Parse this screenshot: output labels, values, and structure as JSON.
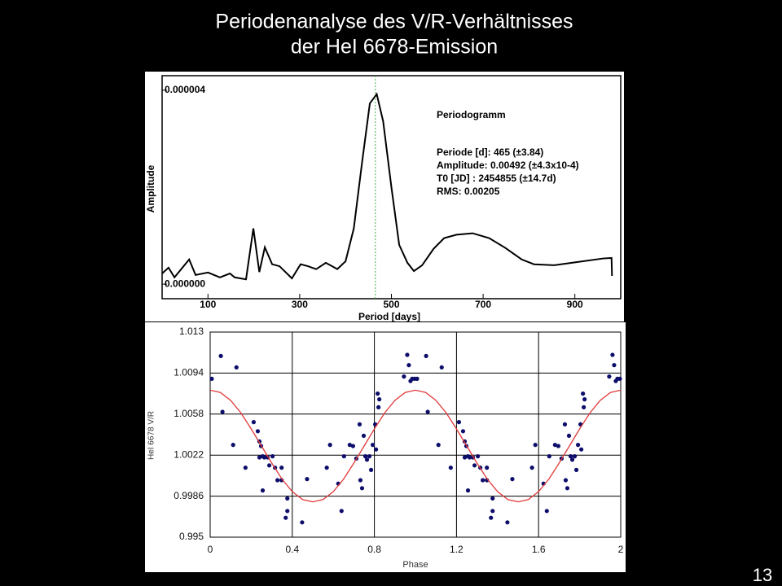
{
  "slide": {
    "title_lines": [
      "Periodenanalyse des V/R-Verhältnisses",
      "der HeI 6678-Emission"
    ],
    "page_number": "13"
  },
  "chart_data": [
    {
      "type": "line",
      "xlabel": "Period [days]",
      "ylabel": "Amplitude",
      "annotations": [
        "Periodogramm",
        "Periode [d]:  465 (±3.84)",
        "Amplitude:  0.00492  (±4.3x10-4)",
        "T0 [JD] : 2454855  (±14.7d)",
        "RMS:  0.00205"
      ],
      "xlim": [
        0,
        1000
      ],
      "xticks": [
        100,
        300,
        500,
        700,
        900
      ],
      "ylim": [
        -3e-07,
        4.3e-06
      ],
      "yticks": [
        {
          "value": 4e-06,
          "label": "0.000004"
        },
        {
          "value": 0,
          "label": "0.000000"
        }
      ],
      "marker_x": 465,
      "marker_color": "#3cb043",
      "series": [
        {
          "color": "#000000",
          "x": [
            0,
            14,
            27,
            59,
            73,
            100,
            126,
            148,
            158,
            183,
            199,
            212,
            224,
            240,
            256,
            283,
            302,
            318,
            336,
            357,
            382,
            400,
            418,
            436,
            453,
            468,
            482,
            500,
            517,
            535,
            549,
            567,
            592,
            615,
            642,
            677,
            713,
            748,
            784,
            811,
            855,
            908,
            962,
            980,
            981
          ],
          "values": [
            2.2e-07,
            3.4e-07,
            1.4e-07,
            5.1e-07,
            1.9e-07,
            2.4e-07,
            1.4e-07,
            2.2e-07,
            1.4e-07,
            1e-07,
            1.15e-06,
            2.5e-07,
            7.6e-07,
            4.1e-07,
            3.7e-07,
            1.2e-07,
            4.1e-07,
            3.7e-07,
            3.1e-07,
            4.4e-07,
            3.1e-07,
            4.7e-07,
            1.15e-06,
            2.51e-06,
            3.73e-06,
            3.92e-06,
            3.36e-06,
            2e-06,
            8.1e-07,
            4.4e-07,
            2.7e-07,
            3.9e-07,
            7.3e-07,
            9.5e-07,
            1.02e-06,
            1.05e-06,
            9.5e-07,
            7.5e-07,
            5.1e-07,
            4.1e-07,
            3.9e-07,
            4.6e-07,
            5.3e-07,
            5.4e-07,
            1.7e-07
          ]
        }
      ]
    },
    {
      "type": "scatter",
      "xlabel": "Phase",
      "ylabel": "HeI 6678 V/R",
      "grid": true,
      "xlim": [
        0,
        2
      ],
      "xticks": [
        0,
        0.4,
        0.8,
        1.2,
        1.6,
        2
      ],
      "ylim": [
        0.995,
        1.013
      ],
      "yticks": [
        1.013,
        1.0094,
        1.0058,
        1.0022,
        0.9986,
        0.995
      ],
      "series": [
        {
          "type": "scatter",
          "color": "#0d0d6b",
          "x": [
            0.008,
            0.052,
            0.06,
            0.128,
            0.112,
            0.172,
            0.212,
            0.232,
            0.24,
            0.248,
            0.256,
            0.24,
            0.264,
            0.28,
            0.288,
            0.304,
            0.316,
            0.328,
            0.348,
            0.256,
            0.368,
            0.376,
            0.376,
            0.348,
            0.448,
            0.472,
            0.568,
            0.584,
            0.624,
            0.64,
            0.652,
            0.68,
            0.696,
            0.712,
            0.728,
            0.732,
            0.74,
            0.748,
            0.756,
            0.764,
            0.776,
            0.784,
            0.792,
            0.804,
            0.808,
            0.816,
            0.82,
            0.824,
            0.944,
            0.96,
            0.968,
            0.976,
            0.984,
            0.996,
            1.008,
            1.052,
            1.06,
            1.128,
            1.112,
            1.172,
            1.212,
            1.232,
            1.24,
            1.248,
            1.256,
            1.24,
            1.264,
            1.28,
            1.288,
            1.304,
            1.316,
            1.328,
            1.348,
            1.256,
            1.368,
            1.376,
            1.376,
            1.348,
            1.448,
            1.472,
            1.568,
            1.584,
            1.624,
            1.64,
            1.652,
            1.68,
            1.696,
            1.712,
            1.728,
            1.732,
            1.74,
            1.748,
            1.756,
            1.764,
            1.776,
            1.784,
            1.792,
            1.804,
            1.808,
            1.816,
            1.82,
            1.824,
            1.944,
            1.96,
            1.968,
            1.976,
            1.984,
            1.996
          ],
          "values": [
            1.0089,
            1.0109,
            1.006,
            1.0099,
            1.0031,
            1.0011,
            1.0051,
            1.0043,
            1.0034,
            1.003,
            1.0021,
            1.002,
            1.002,
            1.002,
            1.0013,
            1.0021,
            1.0011,
            1.0,
            1.0011,
            0.9991,
            0.9967,
            0.9973,
            0.9984,
            1.0,
            0.9963,
            1.0001,
            1.0011,
            1.0031,
            0.9997,
            0.9973,
            1.0021,
            1.0031,
            1.003,
            1.0019,
            1.0049,
            1.0,
            0.9993,
            1.0039,
            1.0021,
            1.0018,
            1.0021,
            1.0009,
            1.0031,
            1.0049,
            1.0027,
            1.0076,
            1.0064,
            1.0071,
            1.0091,
            1.011,
            1.0101,
            1.0087,
            1.0089,
            1.0089,
            1.0089,
            1.0109,
            1.006,
            1.0099,
            1.0031,
            1.0011,
            1.0051,
            1.0043,
            1.0034,
            1.003,
            1.0021,
            1.002,
            1.002,
            1.002,
            1.0013,
            1.0021,
            1.0011,
            1.0,
            1.0011,
            0.9991,
            0.9967,
            0.9973,
            0.9984,
            1.0,
            0.9963,
            1.0001,
            1.0011,
            1.0031,
            0.9997,
            0.9973,
            1.0021,
            1.0031,
            1.003,
            1.0019,
            1.0049,
            1.0,
            0.9993,
            1.0039,
            1.0021,
            1.0018,
            1.0021,
            1.0009,
            1.0031,
            1.0049,
            1.0027,
            1.0076,
            1.0064,
            1.0071,
            1.0091,
            1.011,
            1.0101,
            1.0087,
            1.0089,
            1.0089
          ]
        },
        {
          "type": "line",
          "color": "#e03a3a",
          "x": [
            0,
            0.05,
            0.1,
            0.15,
            0.2,
            0.25,
            0.3,
            0.35,
            0.4,
            0.45,
            0.5,
            0.55,
            0.6,
            0.65,
            0.7,
            0.75,
            0.8,
            0.85,
            0.9,
            0.95,
            1,
            1.05,
            1.1,
            1.15,
            1.2,
            1.25,
            1.3,
            1.35,
            1.4,
            1.45,
            1.5,
            1.55,
            1.6,
            1.65,
            1.7,
            1.75,
            1.8,
            1.85,
            1.9,
            1.95,
            2
          ],
          "values": [
            1.0079,
            1.0077,
            1.007,
            1.0059,
            1.0045,
            1.003,
            1.0015,
            1.0001,
            0.999,
            0.9983,
            0.9981,
            0.9983,
            0.999,
            1.0001,
            1.0015,
            1.003,
            1.0045,
            1.0059,
            1.007,
            1.0077,
            1.0079,
            1.0077,
            1.007,
            1.0059,
            1.0045,
            1.003,
            1.0015,
            1.0001,
            0.999,
            0.9983,
            0.9981,
            0.9983,
            0.999,
            1.0001,
            1.0015,
            1.003,
            1.0045,
            1.0059,
            1.007,
            1.0077,
            1.0079
          ]
        }
      ]
    }
  ]
}
